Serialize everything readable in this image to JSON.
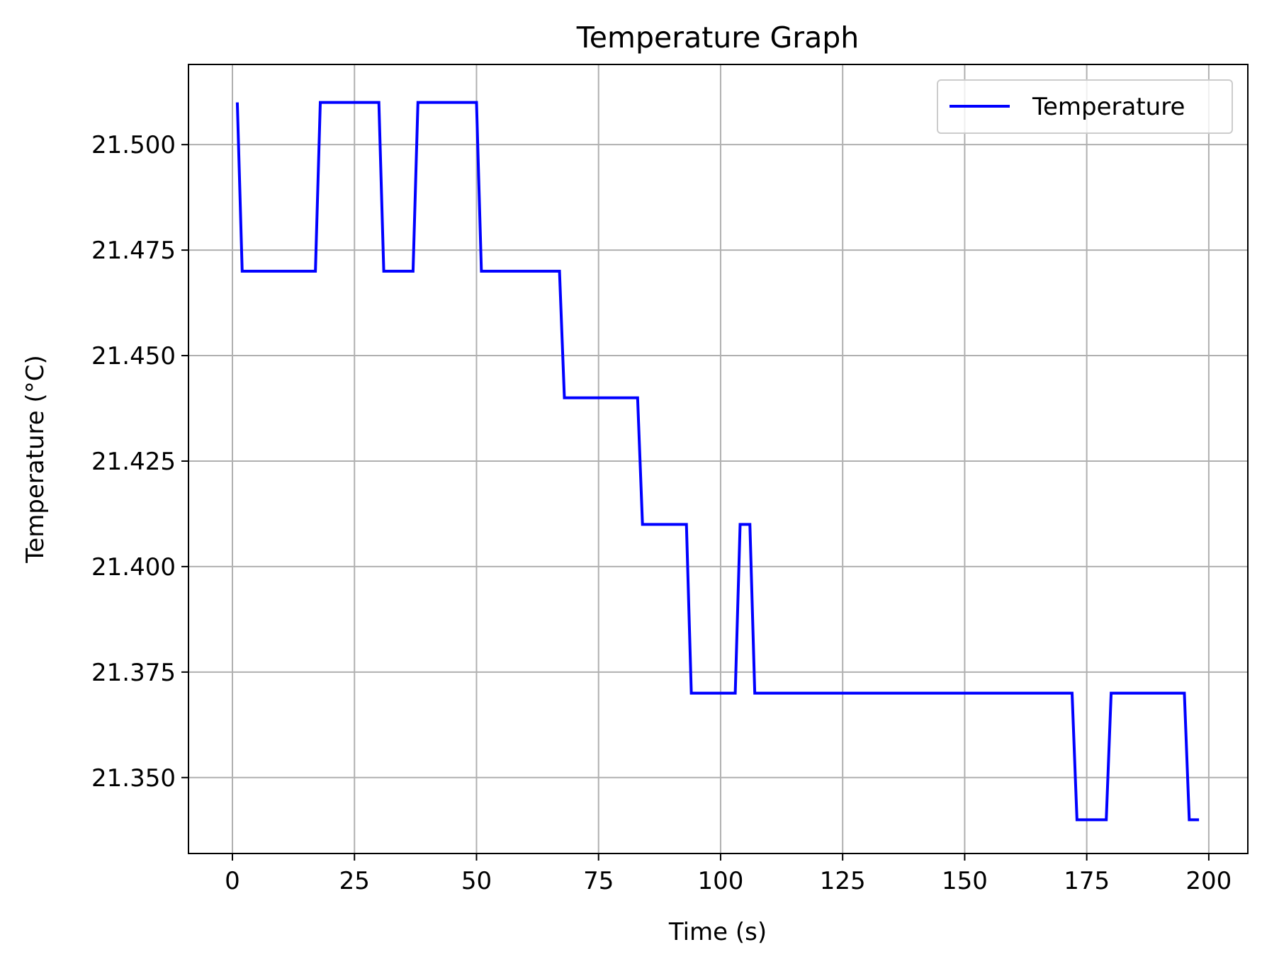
{
  "chart_data": {
    "type": "line",
    "title": "Temperature Graph",
    "xlabel": "Time (s)",
    "ylabel": "Temperature (°C)",
    "xlim": [
      -9,
      208
    ],
    "ylim": [
      21.332,
      21.519
    ],
    "xticks": [
      0,
      25,
      50,
      75,
      100,
      125,
      150,
      175,
      200
    ],
    "yticks": [
      21.35,
      21.375,
      21.4,
      21.425,
      21.45,
      21.475,
      21.5
    ],
    "ytick_decimals": 3,
    "grid": true,
    "legend_position": "top-right",
    "series": [
      {
        "name": "Temperature",
        "color": "#0000ff",
        "points": [
          [
            1,
            21.51
          ],
          [
            2,
            21.47
          ],
          [
            17,
            21.47
          ],
          [
            18,
            21.51
          ],
          [
            30,
            21.51
          ],
          [
            31,
            21.47
          ],
          [
            37,
            21.47
          ],
          [
            38,
            21.51
          ],
          [
            50,
            21.51
          ],
          [
            51,
            21.47
          ],
          [
            67,
            21.47
          ],
          [
            68,
            21.44
          ],
          [
            83,
            21.44
          ],
          [
            84,
            21.41
          ],
          [
            93,
            21.41
          ],
          [
            94,
            21.37
          ],
          [
            103,
            21.37
          ],
          [
            104,
            21.41
          ],
          [
            106,
            21.41
          ],
          [
            107,
            21.37
          ],
          [
            172,
            21.37
          ],
          [
            173,
            21.34
          ],
          [
            179,
            21.34
          ],
          [
            180,
            21.37
          ],
          [
            195,
            21.37
          ],
          [
            196,
            21.34
          ],
          [
            198,
            21.34
          ]
        ]
      }
    ]
  }
}
